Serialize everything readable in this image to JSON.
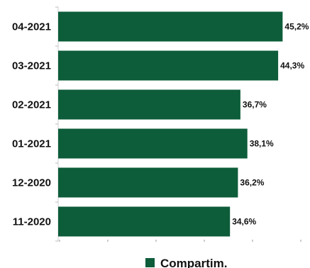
{
  "chart_data": {
    "type": "bar",
    "orientation": "horizontal",
    "categories": [
      "04-2021",
      "03-2021",
      "02-2021",
      "01-2021",
      "12-2020",
      "11-2020"
    ],
    "series": [
      {
        "name": "Compartim.",
        "values": [
          45.2,
          44.3,
          36.7,
          38.1,
          36.2,
          34.6
        ],
        "value_labels": [
          "45,2%",
          "44,3%",
          "36,7%",
          "38,1%",
          "36,2%",
          "34,6%"
        ],
        "color": "#0d5c3a"
      }
    ],
    "title": "",
    "xlabel": "",
    "ylabel": "",
    "xlim": [
      0,
      50
    ],
    "grid": false,
    "legend_position": "bottom"
  }
}
